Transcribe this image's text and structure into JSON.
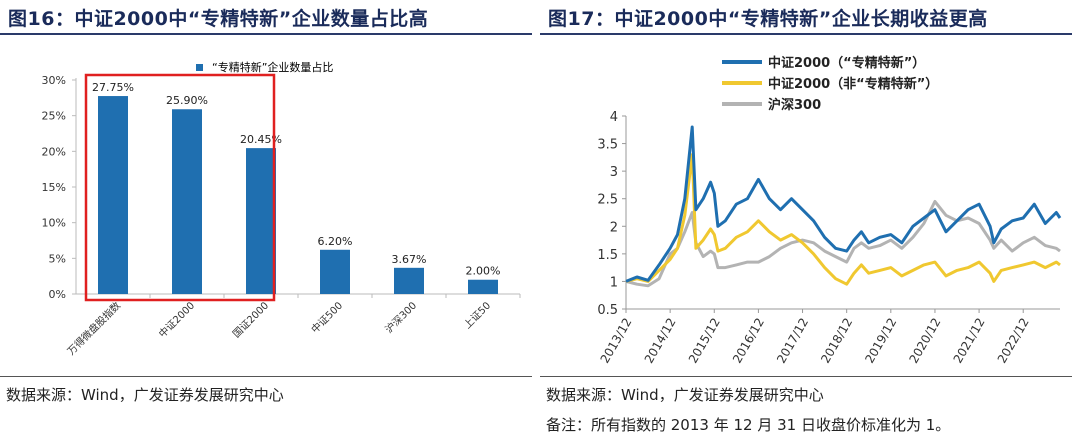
{
  "left": {
    "title": "图16：中证2000中“专精特新”企业数量占比高",
    "source": "数据来源：Wind，广发证券发展研究中心"
  },
  "right": {
    "title": "图17：中证2000中“专精特新”企业长期收益更高",
    "source": "数据来源：Wind，广发证券发展研究中心",
    "note": "备注：所有指数的 2013 年 12 月 31 日收盘价标准化为 1。"
  },
  "chart_data": [
    {
      "type": "bar",
      "legend": "“专精特新”企业数量占比",
      "categories": [
        "万得微盘股指数",
        "中证2000",
        "国证2000",
        "中证500",
        "沪深300",
        "上证50"
      ],
      "values": [
        27.75,
        25.9,
        20.45,
        6.2,
        3.67,
        2.0
      ],
      "value_labels": [
        "27.75%",
        "25.90%",
        "20.45%",
        "6.20%",
        "3.67%",
        "2.00%"
      ],
      "yticks": [
        "0%",
        "5%",
        "10%",
        "15%",
        "20%",
        "25%",
        "30%"
      ],
      "ylim": [
        0,
        30
      ],
      "highlight_categories": [
        "万得微盘股指数",
        "中证2000",
        "国证2000"
      ],
      "colors": {
        "bar": "#1f6fb0",
        "highlight_box": "#e02020"
      },
      "grid": false,
      "legend_position": "top"
    },
    {
      "type": "line",
      "xlabels": [
        "2013/12",
        "2014/12",
        "2015/12",
        "2016/12",
        "2017/12",
        "2018/12",
        "2019/12",
        "2020/12",
        "2021/12",
        "2022/12"
      ],
      "yticks": [
        "0.5",
        "1",
        "1.5",
        "2",
        "2.5",
        "3",
        "3.5",
        "4"
      ],
      "ylim": [
        0.5,
        4
      ],
      "xlim": [
        "2013/12",
        "2023/10"
      ],
      "grid": false,
      "legend_position": "top-left",
      "series": [
        {
          "name": "中证2000（“专精特新”）",
          "color": "#1f6fb0",
          "x": [
            "2013/12",
            "2014/03",
            "2014/06",
            "2014/09",
            "2014/12",
            "2015/02",
            "2015/04",
            "2015/06",
            "2015/07",
            "2015/09",
            "2015/11",
            "2015/12",
            "2016/01",
            "2016/03",
            "2016/06",
            "2016/09",
            "2016/12",
            "2017/03",
            "2017/06",
            "2017/09",
            "2017/12",
            "2018/03",
            "2018/06",
            "2018/09",
            "2018/12",
            "2019/02",
            "2019/04",
            "2019/06",
            "2019/09",
            "2019/12",
            "2020/03",
            "2020/06",
            "2020/09",
            "2020/12",
            "2021/03",
            "2021/06",
            "2021/09",
            "2021/12",
            "2022/03",
            "2022/04",
            "2022/06",
            "2022/09",
            "2022/12",
            "2023/03",
            "2023/06",
            "2023/09",
            "2023/10"
          ],
          "y": [
            1.0,
            1.08,
            1.02,
            1.3,
            1.6,
            1.85,
            2.5,
            3.8,
            2.3,
            2.5,
            2.8,
            2.6,
            2.0,
            2.1,
            2.4,
            2.5,
            2.85,
            2.5,
            2.3,
            2.5,
            2.3,
            2.1,
            1.8,
            1.6,
            1.55,
            1.75,
            1.9,
            1.7,
            1.8,
            1.85,
            1.7,
            2.0,
            2.15,
            2.3,
            1.9,
            2.1,
            2.3,
            2.4,
            2.0,
            1.7,
            1.95,
            2.1,
            2.15,
            2.4,
            2.05,
            2.25,
            2.15
          ]
        },
        {
          "name": "中证2000（非“专精特新”）",
          "color": "#f0c830",
          "x": [
            "2013/12",
            "2014/03",
            "2014/06",
            "2014/09",
            "2014/12",
            "2015/02",
            "2015/04",
            "2015/06",
            "2015/07",
            "2015/09",
            "2015/11",
            "2015/12",
            "2016/01",
            "2016/03",
            "2016/06",
            "2016/09",
            "2016/12",
            "2017/03",
            "2017/06",
            "2017/09",
            "2017/12",
            "2018/03",
            "2018/06",
            "2018/09",
            "2018/12",
            "2019/02",
            "2019/04",
            "2019/06",
            "2019/09",
            "2019/12",
            "2020/03",
            "2020/06",
            "2020/09",
            "2020/12",
            "2021/03",
            "2021/06",
            "2021/09",
            "2021/12",
            "2022/03",
            "2022/04",
            "2022/06",
            "2022/09",
            "2022/12",
            "2023/03",
            "2023/06",
            "2023/09",
            "2023/10"
          ],
          "y": [
            1.0,
            1.05,
            1.0,
            1.2,
            1.4,
            1.6,
            2.2,
            3.3,
            1.6,
            1.75,
            1.95,
            1.85,
            1.55,
            1.6,
            1.8,
            1.9,
            2.1,
            1.9,
            1.75,
            1.85,
            1.7,
            1.5,
            1.25,
            1.05,
            0.95,
            1.15,
            1.3,
            1.15,
            1.2,
            1.25,
            1.1,
            1.2,
            1.3,
            1.35,
            1.1,
            1.2,
            1.25,
            1.35,
            1.15,
            1.0,
            1.2,
            1.25,
            1.3,
            1.35,
            1.25,
            1.35,
            1.3
          ]
        },
        {
          "name": "沪深300",
          "color": "#b3b3b3",
          "x": [
            "2013/12",
            "2014/03",
            "2014/06",
            "2014/09",
            "2014/12",
            "2015/02",
            "2015/04",
            "2015/06",
            "2015/07",
            "2015/09",
            "2015/11",
            "2015/12",
            "2016/01",
            "2016/03",
            "2016/06",
            "2016/09",
            "2016/12",
            "2017/03",
            "2017/06",
            "2017/09",
            "2017/12",
            "2018/03",
            "2018/06",
            "2018/09",
            "2018/12",
            "2019/02",
            "2019/04",
            "2019/06",
            "2019/09",
            "2019/12",
            "2020/03",
            "2020/06",
            "2020/09",
            "2020/12",
            "2021/03",
            "2021/06",
            "2021/09",
            "2021/12",
            "2022/03",
            "2022/04",
            "2022/06",
            "2022/09",
            "2022/12",
            "2023/03",
            "2023/06",
            "2023/09",
            "2023/10"
          ],
          "y": [
            1.0,
            0.95,
            0.92,
            1.05,
            1.5,
            1.6,
            1.9,
            2.25,
            1.7,
            1.45,
            1.55,
            1.5,
            1.25,
            1.25,
            1.3,
            1.35,
            1.35,
            1.45,
            1.6,
            1.7,
            1.75,
            1.7,
            1.55,
            1.45,
            1.35,
            1.6,
            1.7,
            1.6,
            1.65,
            1.75,
            1.6,
            1.8,
            2.05,
            2.45,
            2.2,
            2.1,
            2.15,
            2.05,
            1.75,
            1.6,
            1.75,
            1.55,
            1.7,
            1.8,
            1.65,
            1.6,
            1.55
          ]
        }
      ]
    }
  ]
}
